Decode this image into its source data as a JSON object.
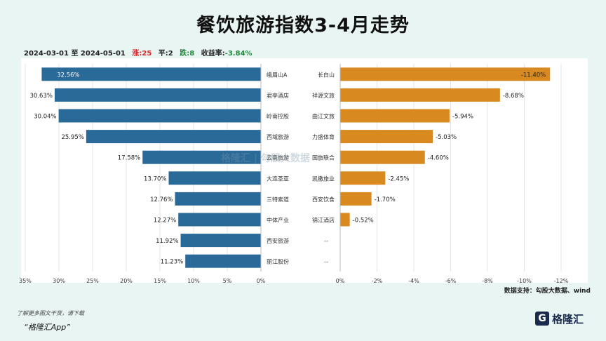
{
  "title": "餐饮旅游指数3-4月走势",
  "summary": {
    "date_range": "2024-03-01 至 2024-05-01",
    "up_label": "涨:25",
    "flat_label": "平:2",
    "down_label": "跌:8",
    "return_prefix": "收益率:",
    "return_value": "-3.84%"
  },
  "colors": {
    "gainers": "#2a6a99",
    "losers": "#d8891f",
    "gain_text": "#d9262b",
    "loss_text": "#1f8a3a"
  },
  "chart_data": [
    {
      "type": "bar",
      "orientation": "horizontal",
      "direction": "leftward",
      "categories": [
        "峨眉山A",
        "君亭酒店",
        "岭南控股",
        "西域旅游",
        "云南旅游",
        "大连圣亚",
        "三特索道",
        "中体产业",
        "西安旅游",
        "丽江股份"
      ],
      "values": [
        32.56,
        30.63,
        30.04,
        25.95,
        17.58,
        13.7,
        12.76,
        12.27,
        11.92,
        11.23
      ],
      "labels": [
        "32.56%",
        "30.63%",
        "30.04%",
        "25.95%",
        "17.58%",
        "13.70%",
        "12.76%",
        "12.27%",
        "11.92%",
        "11.23%"
      ],
      "xlim": [
        0,
        35
      ],
      "ticks": [
        "35%",
        "30%",
        "25%",
        "20%",
        "15%",
        "10%",
        "5%",
        "0%"
      ],
      "grid": true
    },
    {
      "type": "bar",
      "orientation": "horizontal",
      "direction": "rightward",
      "categories": [
        "长白山",
        "祥源文旅",
        "曲江文旅",
        "力盛体育",
        "国旅联合",
        "凯撒旅业",
        "西安饮食",
        "锦江酒店",
        "",
        ""
      ],
      "values": [
        -11.4,
        -8.68,
        -5.94,
        -5.03,
        -4.6,
        -2.45,
        -1.7,
        -0.52,
        null,
        null
      ],
      "labels": [
        "-11.40%",
        "-8.68%",
        "-5.94%",
        "-5.03%",
        "-4.60%",
        "-2.45%",
        "-1.70%",
        "-0.52%",
        "--",
        "--"
      ],
      "xlim": [
        0,
        -12
      ],
      "ticks": [
        "0%",
        "-2%",
        "-4%",
        "-6%",
        "-8%",
        "-10%",
        "-12%"
      ],
      "grid": true
    }
  ],
  "watermark": "格隆汇 | 勾股大数据",
  "source": "数据支持：勾股大数据、wind",
  "footer": {
    "note": "了解更多图文干货，请下载",
    "app": "“格隆汇App”",
    "brand": "格隆汇",
    "brand_icon": "G"
  }
}
